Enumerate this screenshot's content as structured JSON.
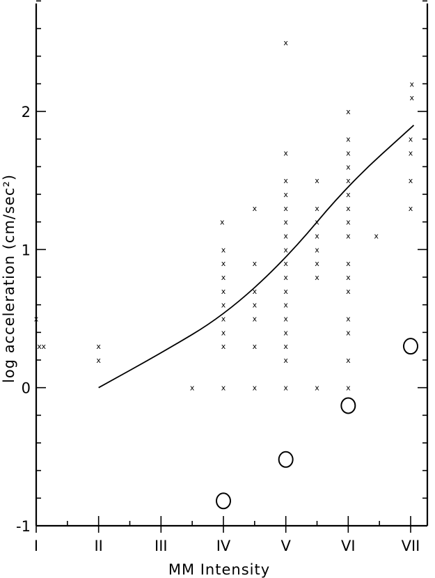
{
  "chart_data": {
    "type": "scatter",
    "title": "",
    "xlabel": "MM  Intensity",
    "ylabel": "log  acceleration  (cm/sec²)",
    "x_categories": [
      "I",
      "II",
      "III",
      "IV",
      "V",
      "VI",
      "VII"
    ],
    "xlim": [
      1,
      7
    ],
    "ylim": [
      -1,
      2.8
    ],
    "y_tick_labels": [
      {
        "value": -1,
        "label": "-1"
      },
      {
        "value": 0,
        "label": "0"
      },
      {
        "value": 1,
        "label": "1"
      },
      {
        "value": 2,
        "label": "2"
      }
    ],
    "grid": false,
    "series": [
      {
        "marker": "x",
        "points": [
          [
            1,
            0.5
          ],
          [
            1.05,
            0.3
          ],
          [
            1.12,
            0.3
          ],
          [
            2,
            0.3
          ],
          [
            2,
            0.2
          ],
          [
            3.5,
            0
          ],
          [
            3.98,
            1.2
          ],
          [
            4,
            1.0
          ],
          [
            4,
            0.9
          ],
          [
            4,
            0.8
          ],
          [
            4,
            0.7
          ],
          [
            4,
            0.6
          ],
          [
            4,
            0.5
          ],
          [
            4,
            0.4
          ],
          [
            4,
            0.3
          ],
          [
            4,
            0
          ],
          [
            4.5,
            0.9
          ],
          [
            4.5,
            0.7
          ],
          [
            4.5,
            0.6
          ],
          [
            4.5,
            0.5
          ],
          [
            4.5,
            0.3
          ],
          [
            4.5,
            0
          ],
          [
            4.5,
            1.3
          ],
          [
            5,
            2.5
          ],
          [
            5,
            1.7
          ],
          [
            5,
            1.5
          ],
          [
            5,
            1.4
          ],
          [
            5,
            1.3
          ],
          [
            5,
            1.2
          ],
          [
            5,
            1.1
          ],
          [
            5,
            1.0
          ],
          [
            5,
            0.9
          ],
          [
            5,
            0.8
          ],
          [
            5,
            0.7
          ],
          [
            5,
            0.6
          ],
          [
            5,
            0.5
          ],
          [
            5,
            0.4
          ],
          [
            5,
            0.3
          ],
          [
            5,
            0.2
          ],
          [
            5,
            0
          ],
          [
            5.5,
            1.5
          ],
          [
            5.5,
            1.3
          ],
          [
            5.5,
            1.2
          ],
          [
            5.5,
            1.1
          ],
          [
            5.5,
            1.0
          ],
          [
            5.5,
            0.9
          ],
          [
            5.5,
            0.8
          ],
          [
            5.5,
            0
          ],
          [
            6,
            2.0
          ],
          [
            6,
            1.8
          ],
          [
            6,
            1.7
          ],
          [
            6,
            1.6
          ],
          [
            6,
            1.5
          ],
          [
            6,
            1.4
          ],
          [
            6,
            1.3
          ],
          [
            6,
            1.2
          ],
          [
            6,
            1.1
          ],
          [
            6,
            0.9
          ],
          [
            6,
            0.8
          ],
          [
            6,
            0.7
          ],
          [
            6,
            0.5
          ],
          [
            6,
            0.4
          ],
          [
            6,
            0.2
          ],
          [
            6,
            0
          ],
          [
            6.45,
            1.1
          ],
          [
            7.02,
            2.2
          ],
          [
            7.02,
            2.1
          ],
          [
            7,
            1.8
          ],
          [
            7,
            1.7
          ],
          [
            7,
            1.5
          ],
          [
            7,
            1.3
          ]
        ]
      },
      {
        "marker": "circle",
        "points": [
          [
            4,
            -0.82
          ],
          [
            5,
            -0.52
          ],
          [
            6,
            -0.13
          ],
          [
            7,
            0.3
          ]
        ]
      },
      {
        "marker": "line",
        "points": [
          [
            2,
            0
          ],
          [
            3,
            0.25
          ],
          [
            4,
            0.52
          ],
          [
            5,
            0.93
          ],
          [
            6,
            1.47
          ],
          [
            7.05,
            1.9
          ]
        ]
      }
    ]
  }
}
